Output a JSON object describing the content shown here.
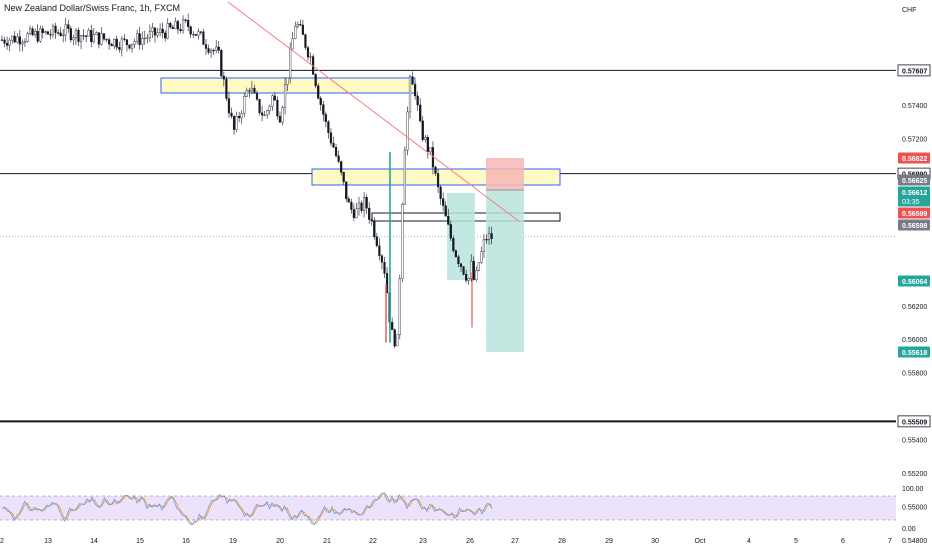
{
  "title": "New Zealand Dollar/Swiss Franc, 1h, FXCM",
  "currency_label": "CHF",
  "colors": {
    "up": "#26a69a",
    "down": "#ef5350",
    "candle": "#131722",
    "trendline": "#f77c80",
    "zone_border": "#2962ff",
    "zone_fill": "#fff9c4",
    "stop_fill": "#f7b7b5",
    "target_fill": "#b8e4dc",
    "rsi_band": "#e6d5fb",
    "rsi_line": "#5b9cf6",
    "rsi_signal": "#ff9800"
  },
  "chart_data": [
    {
      "type": "candlestick",
      "title": "New Zealand Dollar/Swiss Franc, 1h, FXCM",
      "x_ticks": [
        "2",
        "13",
        "14",
        "15",
        "16",
        "19",
        "20",
        "21",
        "22",
        "23",
        "26",
        "27",
        "28",
        "29",
        "30",
        "Oct",
        "4",
        "5",
        "6",
        "7"
      ],
      "y_ticks": [
        "0.57400",
        "0.57200",
        "0.56200",
        "0.56000",
        "0.55800",
        "0.55400",
        "0.55200",
        "0.55000",
        "0.54800"
      ],
      "ylim": [
        0.5474,
        0.5798
      ],
      "horizontal_levels": [
        {
          "value": 0.57607,
          "label": "0.57607"
        },
        {
          "value": 0.5699,
          "label": "0.56990"
        },
        {
          "value": 0.55509,
          "label": "0.55509"
        }
      ],
      "price_labels": [
        {
          "value": 0.56822,
          "label": "0.56822",
          "color": "#ef5350"
        },
        {
          "value": 0.56625,
          "label": "0.56625",
          "color": "#787b86"
        },
        {
          "value": 0.56612,
          "label": "0.56612",
          "color": "#26a69a"
        },
        {
          "value": 0.56599,
          "label": "0.56599",
          "color": "#ef5350"
        },
        {
          "value": 0.56598,
          "label": "0.56598",
          "color": "#787b86"
        },
        {
          "value": 0.56064,
          "label": "0.56064",
          "color": "#26a69a"
        },
        {
          "value": 0.55618,
          "label": "0.55618",
          "color": "#26a69a"
        }
      ],
      "countdown": "03:35",
      "current_price": 0.56612,
      "candles_path": [
        [
          0,
          0.5779
        ],
        [
          4,
          0.5784
        ],
        [
          8,
          0.5777
        ],
        [
          12,
          0.5788
        ],
        [
          14,
          0.577
        ],
        [
          15,
          0.5724
        ],
        [
          16,
          0.5752
        ],
        [
          16.5,
          0.574
        ],
        [
          17,
          0.5733
        ],
        [
          17.5,
          0.5745
        ],
        [
          18,
          0.5734
        ],
        [
          18.5,
          0.576
        ],
        [
          19,
          0.579
        ],
        [
          19.5,
          0.578
        ],
        [
          20,
          0.5768
        ],
        [
          20.5,
          0.5746
        ],
        [
          21,
          0.5727
        ],
        [
          21.5,
          0.5714
        ],
        [
          22,
          0.5696
        ],
        [
          22.5,
          0.5678
        ],
        [
          23,
          0.5676
        ],
        [
          23.5,
          0.5682
        ],
        [
          24,
          0.5668
        ],
        [
          24.5,
          0.5652
        ],
        [
          24.8,
          0.564
        ],
        [
          25.2,
          0.5603
        ],
        [
          25.6,
          0.5598
        ],
        [
          26,
          0.5708
        ],
        [
          26.4,
          0.5753
        ],
        [
          26.8,
          0.5748
        ],
        [
          27,
          0.5728
        ],
        [
          27.4,
          0.5718
        ],
        [
          27.8,
          0.5709
        ],
        [
          28.2,
          0.569
        ],
        [
          28.6,
          0.5676
        ],
        [
          29,
          0.5662
        ],
        [
          29.4,
          0.5651
        ],
        [
          29.8,
          0.5643
        ],
        [
          30.2,
          0.5636
        ],
        [
          30.4,
          0.5645
        ],
        [
          30.6,
          0.5631
        ],
        [
          30.8,
          0.5644
        ],
        [
          31,
          0.565
        ],
        [
          31.3,
          0.5661
        ]
      ]
    },
    {
      "type": "line",
      "title": "",
      "y_ticks": [
        "100.00",
        "0.00"
      ],
      "ylim": [
        0,
        100
      ]
    }
  ]
}
